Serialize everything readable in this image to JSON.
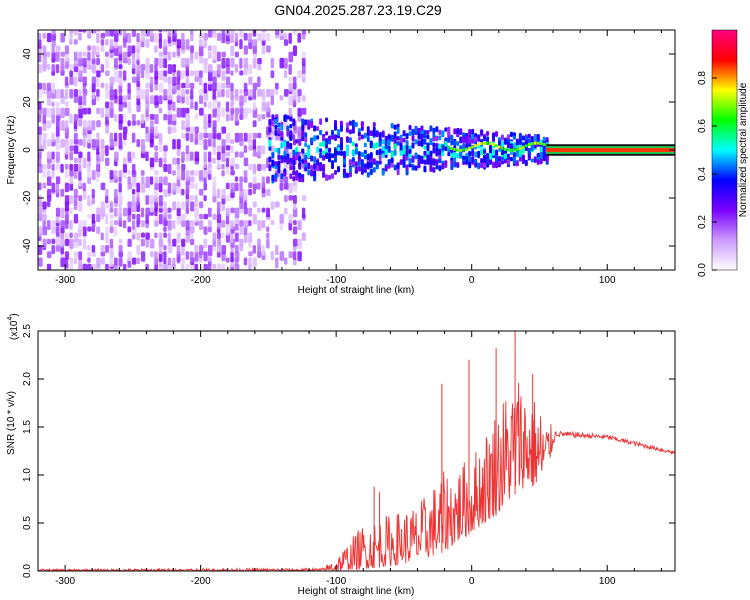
{
  "title": "GN04.2025.287.23.19.C29",
  "chart_data": [
    {
      "type": "heatmap",
      "name": "spectrogram",
      "xlabel": "Height of straight line (km)",
      "ylabel": "Frequency (Hz)",
      "xlim": [
        -320,
        150
      ],
      "ylim": [
        -50,
        50
      ],
      "xticks": [
        -300,
        -200,
        -100,
        0,
        100
      ],
      "yticks": [
        -40,
        -20,
        0,
        20,
        40
      ],
      "colorbar": {
        "label": "Normalized spectral amplitude",
        "range": [
          0.0,
          1.0
        ],
        "ticks": [
          0.0,
          0.2,
          0.4,
          0.6,
          0.8
        ],
        "stops": [
          "#ffffff",
          "#cc99ff",
          "#7a00ff",
          "#0000ff",
          "#00ffff",
          "#00ff00",
          "#ffff00",
          "#ff0000",
          "#ff0080"
        ]
      },
      "regions": [
        {
          "desc": "noise",
          "x": [
            -320,
            -125
          ],
          "freq": [
            -50,
            50
          ],
          "amp": [
            0.05,
            0.25
          ]
        },
        {
          "desc": "signal",
          "x": [
            -150,
            55
          ],
          "freq_center": 0,
          "amp": [
            0.2,
            0.45
          ]
        },
        {
          "desc": "tone",
          "x": [
            55,
            150
          ],
          "freq": 0,
          "amp": 0.85
        }
      ]
    },
    {
      "type": "line",
      "name": "snr",
      "xlabel": "Height of straight line (km)",
      "ylabel": "SNR (10 * v/v)",
      "yscale_label": "(x10",
      "yscale_exp": "4",
      "xlim": [
        -320,
        150
      ],
      "ylim": [
        0,
        2.5
      ],
      "xticks": [
        -300,
        -200,
        -100,
        0,
        100
      ],
      "yticks": [
        0.0,
        0.5,
        1.0,
        1.5,
        2.0,
        2.5
      ],
      "color": "#ee3333",
      "envelope": [
        {
          "x": -320,
          "lo": 0.0,
          "hi": 0.02
        },
        {
          "x": -110,
          "lo": 0.0,
          "hi": 0.03
        },
        {
          "x": -100,
          "lo": 0.0,
          "hi": 0.15
        },
        {
          "x": -80,
          "lo": 0.02,
          "hi": 0.5
        },
        {
          "x": -60,
          "lo": 0.05,
          "hi": 0.6
        },
        {
          "x": -40,
          "lo": 0.1,
          "hi": 0.7
        },
        {
          "x": -20,
          "lo": 0.2,
          "hi": 1.05
        },
        {
          "x": 0,
          "lo": 0.4,
          "hi": 1.2
        },
        {
          "x": 20,
          "lo": 0.6,
          "hi": 1.8
        },
        {
          "x": 35,
          "lo": 0.85,
          "hi": 2.1
        },
        {
          "x": 50,
          "lo": 0.9,
          "hi": 1.75
        },
        {
          "x": 55,
          "lo": 1.0,
          "hi": 1.6
        },
        {
          "x": 62,
          "lo": 1.4,
          "hi": 1.46
        },
        {
          "x": 100,
          "lo": 1.37,
          "hi": 1.42
        },
        {
          "x": 150,
          "lo": 1.21,
          "hi": 1.25
        }
      ],
      "spikes": [
        {
          "x": -72,
          "y": 0.88
        },
        {
          "x": -68,
          "y": 0.82
        },
        {
          "x": -22,
          "y": 1.95
        },
        {
          "x": -2,
          "y": 2.2
        },
        {
          "x": 18,
          "y": 2.32
        },
        {
          "x": 32,
          "y": 2.55
        },
        {
          "x": 45,
          "y": 2.05
        }
      ]
    }
  ]
}
